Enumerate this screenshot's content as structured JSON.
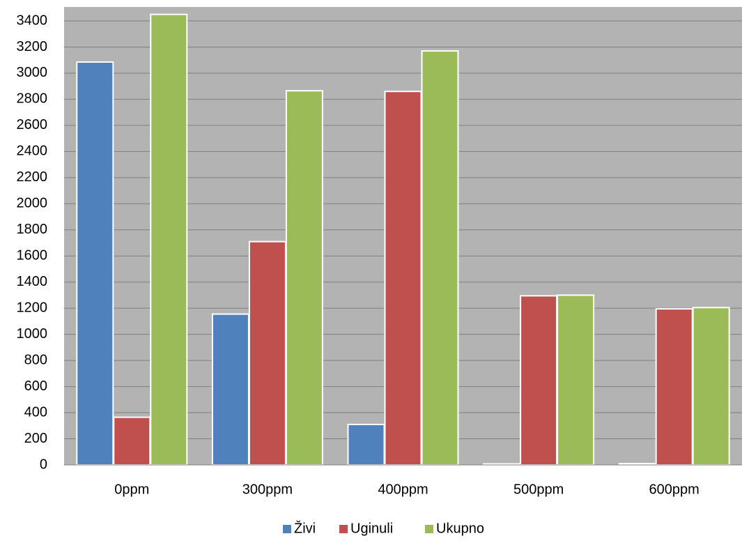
{
  "chart_data": {
    "type": "bar",
    "title": "",
    "xlabel": "",
    "ylabel": "",
    "categories": [
      "0ppm",
      "300ppm",
      "400ppm",
      "500ppm",
      "600ppm"
    ],
    "ylim": [
      0,
      3500
    ],
    "yticks": [
      0,
      200,
      400,
      600,
      800,
      1000,
      1200,
      1400,
      1600,
      1800,
      2000,
      2200,
      2400,
      2600,
      2800,
      3000,
      3200,
      3400
    ],
    "grid": true,
    "legend_position": "bottom",
    "plot_background": "#b3b3b3",
    "series": [
      {
        "name": "Živi",
        "color": "#4f81bd",
        "values": [
          3085,
          1155,
          310,
          5,
          10
        ]
      },
      {
        "name": "Uginuli",
        "color": "#c0504d",
        "values": [
          365,
          1710,
          2860,
          1295,
          1195
        ]
      },
      {
        "name": "Ukupno",
        "color": "#9bbb59",
        "values": [
          3450,
          2865,
          3170,
          1300,
          1205
        ]
      }
    ]
  }
}
